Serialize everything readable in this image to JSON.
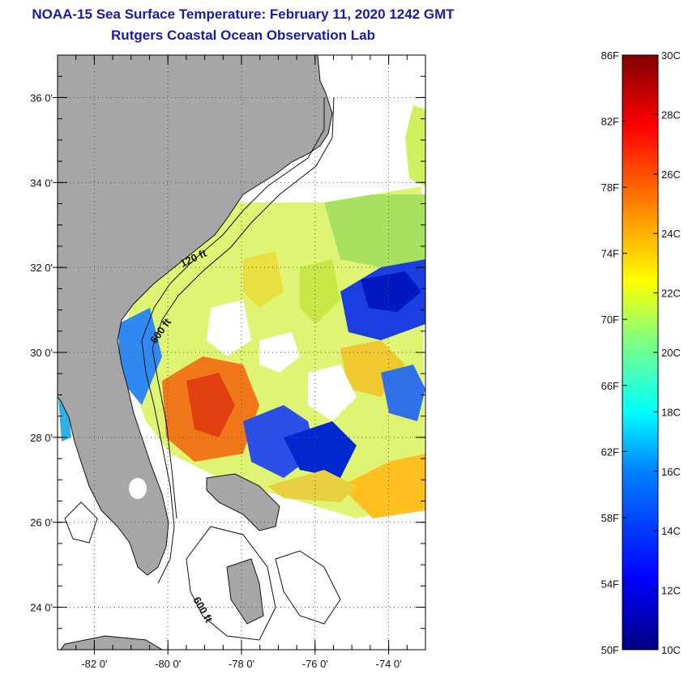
{
  "header": {
    "title": "NOAA-15 Sea Surface Temperature:  February 11, 2020 1242 GMT",
    "subtitle": "Rutgers Coastal Ocean Observation Lab"
  },
  "map": {
    "lon_range": [
      -83,
      -73
    ],
    "lat_range": [
      23,
      37
    ],
    "lon_ticks": [
      {
        "value": -82,
        "label": "-82 0'"
      },
      {
        "value": -80,
        "label": "-80 0'"
      },
      {
        "value": -78,
        "label": "-78 0'"
      },
      {
        "value": -76,
        "label": "-76 0'"
      },
      {
        "value": -74,
        "label": "-74 0'"
      }
    ],
    "lat_ticks": [
      {
        "value": 36,
        "label": "36 0'"
      },
      {
        "value": 34,
        "label": "34 0'"
      },
      {
        "value": 32,
        "label": "32 0'"
      },
      {
        "value": 30,
        "label": "30 0'"
      },
      {
        "value": 28,
        "label": "28 0'"
      },
      {
        "value": 26,
        "label": "26 0'"
      },
      {
        "value": 24,
        "label": "24 0'"
      }
    ],
    "contour_labels": [
      "120 ft",
      "600 ft",
      "600 ft"
    ]
  },
  "colorbar": {
    "fahrenheit_labels": [
      "86F",
      "82F",
      "78F",
      "74F",
      "70F",
      "66F",
      "62F",
      "58F",
      "54F",
      "50F"
    ],
    "celsius_labels": [
      "30C",
      "28C",
      "26C",
      "24C",
      "22C",
      "20C",
      "18C",
      "16C",
      "14C",
      "12C",
      "10C"
    ],
    "range_c": [
      10,
      30
    ],
    "colors": [
      "#000080",
      "#0000ff",
      "#0080ff",
      "#00ffff",
      "#80ff80",
      "#ffff00",
      "#ff8000",
      "#ff0000",
      "#800000"
    ]
  }
}
